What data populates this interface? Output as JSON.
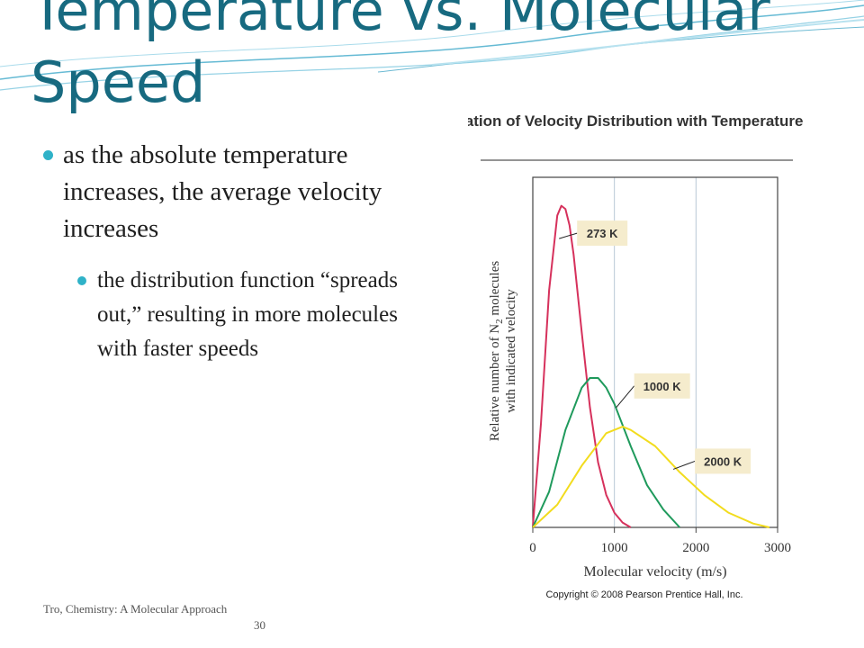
{
  "slide": {
    "title": "Temperature vs. Molecular Speed",
    "bullet": "as the absolute temperature increases, the average velocity increases",
    "sub_bullet": "the distribution function “spreads out,” resulting in more molecules with faster speeds",
    "footer_source": "Tro, Chemistry: A Molecular Approach",
    "page_number": "30",
    "colors": {
      "title": "#176a80",
      "bullet": "#2fb2c8",
      "wave": "#3fa9c9"
    }
  },
  "chart_data": {
    "type": "line",
    "title": "Variation of Velocity Distribution with Temperature",
    "xlabel": "Molecular velocity (m/s)",
    "ylabel_line1": "Relative number of N",
    "ylabel_subscript": "2",
    "ylabel_line1_end": " molecules",
    "ylabel_line2": "with indicated velocity",
    "xlim": [
      0,
      3000
    ],
    "ylim": [
      0,
      1
    ],
    "xticks": [
      0,
      1000,
      2000,
      3000
    ],
    "xtick_labels": [
      "0",
      "1000",
      "2000",
      "3000"
    ],
    "gridlines_x": [
      1000,
      2000
    ],
    "copyright": "Copyright © 2008 Pearson Prentice Hall, Inc.",
    "series": [
      {
        "name": "273 K",
        "color": "#d6315c",
        "x": [
          0,
          100,
          200,
          300,
          350,
          400,
          450,
          500,
          600,
          700,
          800,
          900,
          1000,
          1100,
          1200
        ],
        "y": [
          0,
          0.32,
          0.73,
          0.96,
          0.99,
          0.98,
          0.93,
          0.84,
          0.6,
          0.37,
          0.2,
          0.1,
          0.045,
          0.015,
          0
        ]
      },
      {
        "name": "1000 K",
        "color": "#1f9a5c",
        "x": [
          0,
          200,
          400,
          600,
          700,
          800,
          900,
          1000,
          1200,
          1400,
          1600,
          1800
        ],
        "y": [
          0,
          0.11,
          0.3,
          0.43,
          0.46,
          0.46,
          0.43,
          0.38,
          0.25,
          0.13,
          0.055,
          0
        ]
      },
      {
        "name": "2000 K",
        "color": "#f2dc1e",
        "x": [
          0,
          300,
          600,
          900,
          1100,
          1200,
          1500,
          1800,
          2100,
          2400,
          2700,
          2900
        ],
        "y": [
          0,
          0.07,
          0.19,
          0.29,
          0.31,
          0.3,
          0.25,
          0.17,
          0.1,
          0.045,
          0.012,
          0
        ]
      }
    ],
    "annotations": [
      {
        "text": "273 K",
        "series": 0,
        "x": 300,
        "y": 0.9
      },
      {
        "text": "1000 K",
        "series": 1,
        "x": 1000,
        "y": 0.38
      },
      {
        "text": "2000 K",
        "series": 2,
        "x": 1700,
        "y": 0.19
      }
    ]
  }
}
